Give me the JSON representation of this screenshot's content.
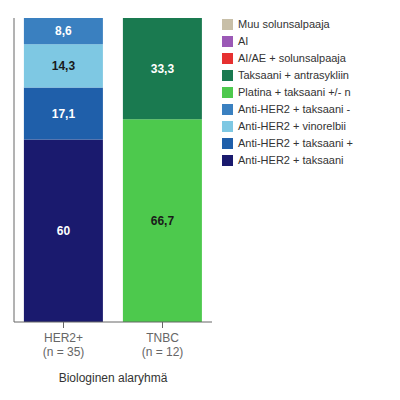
{
  "chart_data": {
    "type": "bar",
    "stacked": true,
    "categories": [
      "HER2+\n(n = 35)",
      "TNBC\n(n = 12)"
    ],
    "series": [
      {
        "name": "Anti-HER2 + taksaani",
        "color": "#1a1a6e",
        "values": [
          60,
          0
        ],
        "value_labels": [
          "60",
          null
        ]
      },
      {
        "name": "Anti-HER2 + taksaani +",
        "color": "#1f5faa",
        "values": [
          17.1,
          0
        ],
        "value_labels": [
          "17,1",
          null
        ]
      },
      {
        "name": "Anti-HER2 + vinorelbii",
        "color": "#7ec8e3",
        "values": [
          14.3,
          0
        ],
        "value_labels": [
          "14,3",
          null
        ]
      },
      {
        "name": "Anti-HER2 + taksaani -",
        "color": "#3a80c0",
        "values": [
          8.6,
          0
        ],
        "value_labels": [
          "8,6",
          null
        ]
      },
      {
        "name": "Platina + taksaani +/- n",
        "color": "#4dc94d",
        "values": [
          0,
          66.7
        ],
        "value_labels": [
          null,
          "66,7"
        ]
      },
      {
        "name": "Taksaani + antrasykliin",
        "color": "#1a7a50",
        "values": [
          0,
          33.3
        ],
        "value_labels": [
          null,
          "33,3"
        ]
      },
      {
        "name": "AI/AE + solunsalpaaja",
        "color": "#e63030",
        "values": [
          0,
          0
        ],
        "value_labels": [
          null,
          null
        ]
      },
      {
        "name": "AI",
        "color": "#9b59b6",
        "values": [
          0,
          0
        ],
        "value_labels": [
          null,
          null
        ]
      },
      {
        "name": "Muu solunsalpaaja",
        "color": "#c8bfa8",
        "values": [
          0,
          0
        ],
        "value_labels": [
          null,
          null
        ]
      }
    ],
    "xlabel": "Biologinen alaryhmä",
    "ylim": [
      0,
      100
    ],
    "grid": false,
    "legend": "right",
    "data_labels": true,
    "tick_labels": "x"
  }
}
